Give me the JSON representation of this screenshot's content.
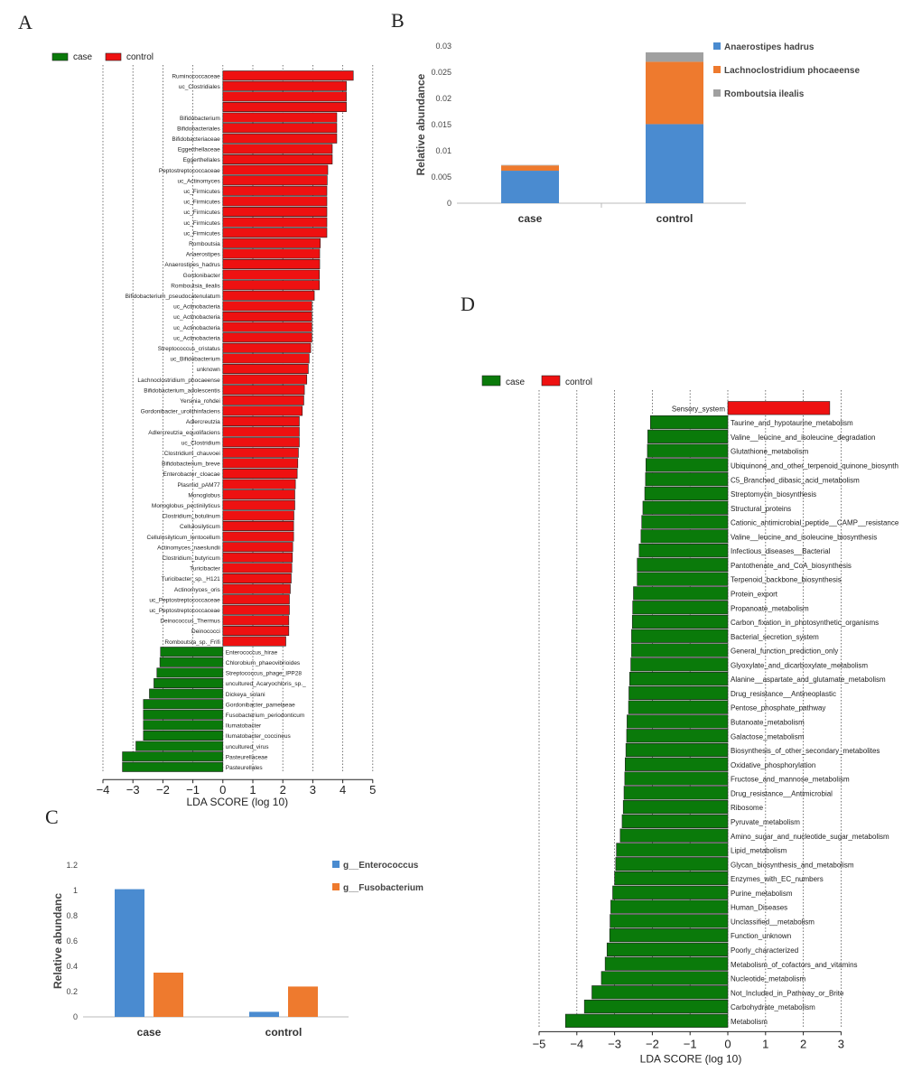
{
  "colors": {
    "case": "#0a7a0a",
    "control": "#ee1111",
    "blue": "#4a8bd0",
    "orange": "#ee7a2e",
    "gray": "#a0a0a0",
    "grid": "#555555"
  },
  "panels": {
    "a": "A",
    "b": "B",
    "c": "C",
    "d": "D"
  },
  "chart_data": [
    {
      "panel": "A",
      "type": "bar",
      "orientation": "horizontal",
      "legend": [
        "case",
        "control"
      ],
      "xlabel": "LDA SCORE (log 10)",
      "xlim": [
        -4,
        5
      ],
      "xticks": [
        "−4",
        "−3",
        "−2",
        "−1",
        "0",
        "1",
        "2",
        "3",
        "4",
        "5"
      ],
      "bars": [
        {
          "label": "Ruminococcaceae",
          "value": 4.35,
          "group": "control"
        },
        {
          "label": "uc_Clostridiales",
          "value": 4.12,
          "group": "control"
        },
        {
          "label": "",
          "value": 4.12,
          "group": "control"
        },
        {
          "label": "",
          "value": 4.12,
          "group": "control"
        },
        {
          "label": "Bifidobacterium",
          "value": 3.8,
          "group": "control"
        },
        {
          "label": "Bifidobacteriales",
          "value": 3.8,
          "group": "control"
        },
        {
          "label": "Bifidobacteriaceae",
          "value": 3.8,
          "group": "control"
        },
        {
          "label": "Eggerthellaceae",
          "value": 3.65,
          "group": "control"
        },
        {
          "label": "Eggerthellales",
          "value": 3.65,
          "group": "control"
        },
        {
          "label": "Peptostreptococcaceae",
          "value": 3.5,
          "group": "control"
        },
        {
          "label": "uc_Actinomyces",
          "value": 3.48,
          "group": "control"
        },
        {
          "label": "uc_Firmicutes",
          "value": 3.47,
          "group": "control"
        },
        {
          "label": "uc_Firmicutes",
          "value": 3.47,
          "group": "control"
        },
        {
          "label": "uc_Firmicutes",
          "value": 3.47,
          "group": "control"
        },
        {
          "label": "uc_Firmicutes",
          "value": 3.47,
          "group": "control"
        },
        {
          "label": "uc_Firmicutes",
          "value": 3.47,
          "group": "control"
        },
        {
          "label": "Romboutsia",
          "value": 3.25,
          "group": "control"
        },
        {
          "label": "Anaerostipes",
          "value": 3.23,
          "group": "control"
        },
        {
          "label": "Anaerostipes_hadrus",
          "value": 3.23,
          "group": "control"
        },
        {
          "label": "Gordonibacter",
          "value": 3.22,
          "group": "control"
        },
        {
          "label": "Romboutsia_ilealis",
          "value": 3.22,
          "group": "control"
        },
        {
          "label": "Bifidobacterium_pseudocatenulatum",
          "value": 3.05,
          "group": "control"
        },
        {
          "label": "uc_Actinobacteria",
          "value": 2.97,
          "group": "control"
        },
        {
          "label": "uc_Actinobacteria",
          "value": 2.97,
          "group": "control"
        },
        {
          "label": "uc_Actinobacteria",
          "value": 2.97,
          "group": "control"
        },
        {
          "label": "uc_Actinobacteria",
          "value": 2.97,
          "group": "control"
        },
        {
          "label": "Streptococcus_cristatus",
          "value": 2.93,
          "group": "control"
        },
        {
          "label": "uc_Bifidobacterium",
          "value": 2.88,
          "group": "control"
        },
        {
          "label": "unknown",
          "value": 2.85,
          "group": "control"
        },
        {
          "label": "Lachnoclostridium_phocaeense",
          "value": 2.8,
          "group": "control"
        },
        {
          "label": "Bifidobacterium_adolescentis",
          "value": 2.72,
          "group": "control"
        },
        {
          "label": "Yersinia_rohdei",
          "value": 2.7,
          "group": "control"
        },
        {
          "label": "Gordonibacter_urolithinfaciens",
          "value": 2.65,
          "group": "control"
        },
        {
          "label": "Adlercreutzia",
          "value": 2.55,
          "group": "control"
        },
        {
          "label": "Adlercreutzia_equolifaciens",
          "value": 2.55,
          "group": "control"
        },
        {
          "label": "uc_Clostridium",
          "value": 2.55,
          "group": "control"
        },
        {
          "label": "Clostridium_chauvoei",
          "value": 2.52,
          "group": "control"
        },
        {
          "label": "Bifidobacterium_breve",
          "value": 2.5,
          "group": "control"
        },
        {
          "label": "Enterobacter_cloacae",
          "value": 2.48,
          "group": "control"
        },
        {
          "label": "Plasmid_pAM77",
          "value": 2.42,
          "group": "control"
        },
        {
          "label": "Monoglobus",
          "value": 2.4,
          "group": "control"
        },
        {
          "label": "Monoglobus_pectinilyticus",
          "value": 2.4,
          "group": "control"
        },
        {
          "label": "Clostridium_botulinum",
          "value": 2.37,
          "group": "control"
        },
        {
          "label": "Cellulosilyticum",
          "value": 2.36,
          "group": "control"
        },
        {
          "label": "Cellulosilyticum_lentocellum",
          "value": 2.36,
          "group": "control"
        },
        {
          "label": "Actinomyces_naeslundii",
          "value": 2.33,
          "group": "control"
        },
        {
          "label": "Clostridium_butyricum",
          "value": 2.32,
          "group": "control"
        },
        {
          "label": "Turicibacter",
          "value": 2.3,
          "group": "control"
        },
        {
          "label": "Turicibacter_sp._H121",
          "value": 2.28,
          "group": "control"
        },
        {
          "label": "Actinomyces_oris",
          "value": 2.25,
          "group": "control"
        },
        {
          "label": "uc_Peptostreptococcaceae",
          "value": 2.22,
          "group": "control"
        },
        {
          "label": "uc_Peptostreptococcaceae",
          "value": 2.22,
          "group": "control"
        },
        {
          "label": "Deinococcus_Thermus",
          "value": 2.2,
          "group": "control"
        },
        {
          "label": "Deinococci",
          "value": 2.2,
          "group": "control"
        },
        {
          "label": "Romboutsia_sp._Frifi",
          "value": 2.1,
          "group": "control"
        },
        {
          "label": "Enterococcus_hirae",
          "value": -2.08,
          "group": "case"
        },
        {
          "label": "Chlorobium_phaeovibrioides",
          "value": -2.1,
          "group": "case"
        },
        {
          "label": "Streptococcus_phage_IPP28",
          "value": -2.2,
          "group": "case"
        },
        {
          "label": "uncultured_Acaryochloris_sp._",
          "value": -2.3,
          "group": "case"
        },
        {
          "label": "Dickeya_solani",
          "value": -2.45,
          "group": "case"
        },
        {
          "label": "Gordonibacter_pamelaeae",
          "value": -2.65,
          "group": "case"
        },
        {
          "label": "Fusobacterium_periodonticum",
          "value": -2.65,
          "group": "case"
        },
        {
          "label": "Ilumatobacter",
          "value": -2.65,
          "group": "case"
        },
        {
          "label": "Ilumatobacter_coccineus",
          "value": -2.65,
          "group": "case"
        },
        {
          "label": "uncultured_virus",
          "value": -2.9,
          "group": "case"
        },
        {
          "label": "Pasteurellaceae",
          "value": -3.35,
          "group": "case"
        },
        {
          "label": "Pasteurellales",
          "value": -3.35,
          "group": "case"
        }
      ]
    },
    {
      "panel": "B",
      "type": "bar",
      "stacked": true,
      "categories": [
        "case",
        "control"
      ],
      "ylabel": "Relative abundance",
      "ylim": [
        0,
        0.03
      ],
      "yticks": [
        "0",
        "0.005",
        "0.01",
        "0.015",
        "0.02",
        "0.025",
        "0.03"
      ],
      "series": [
        {
          "name": "Anaerostipes hadrus",
          "values": [
            0.0062,
            0.0151
          ]
        },
        {
          "name": "Lachnoclostridium phocaeense",
          "values": [
            0.001,
            0.0119
          ]
        },
        {
          "name": "Romboutsia ilealis",
          "values": [
            0.0001,
            0.0018
          ]
        }
      ]
    },
    {
      "panel": "C",
      "type": "bar",
      "stacked": false,
      "categories": [
        "case",
        "control"
      ],
      "ylabel": "Relative abundanc",
      "ylim": [
        0,
        1.2
      ],
      "yticks": [
        "0",
        "0.2",
        "0.4",
        "0.6",
        "0.8",
        "1",
        "1.2"
      ],
      "series": [
        {
          "name": "g__Enterococcus",
          "values": [
            1.01,
            0.04
          ]
        },
        {
          "name": "g__Fusobacterium",
          "values": [
            0.35,
            0.24
          ]
        }
      ]
    },
    {
      "panel": "D",
      "type": "bar",
      "orientation": "horizontal",
      "legend": [
        "case",
        "control"
      ],
      "xlabel": "LDA SCORE (log 10)",
      "xlim": [
        -5,
        3
      ],
      "xticks": [
        "−5",
        "−4",
        "−3",
        "−2",
        "−1",
        "0",
        "1",
        "2",
        "3"
      ],
      "bars": [
        {
          "label": "Sensory_system",
          "value": 2.7,
          "group": "control"
        },
        {
          "label": "Taurine_and_hypotaurine_metabolism",
          "value": -2.05,
          "group": "case"
        },
        {
          "label": "Valine__leucine_and_isoleucine_degradation",
          "value": -2.12,
          "group": "case"
        },
        {
          "label": "Glutathione_metabolism",
          "value": -2.13,
          "group": "case"
        },
        {
          "label": "Ubiquinone_and_other_terpenoid_quinone_biosynth",
          "value": -2.17,
          "group": "case"
        },
        {
          "label": "C5_Branched_dibasic_acid_metabolism",
          "value": -2.18,
          "group": "case"
        },
        {
          "label": "Streptomycin_biosynthesis",
          "value": -2.2,
          "group": "case"
        },
        {
          "label": "Structural_proteins",
          "value": -2.25,
          "group": "case"
        },
        {
          "label": "Cationic_antimicrobial_peptide__CAMP__resistance",
          "value": -2.28,
          "group": "case"
        },
        {
          "label": "Valine__leucine_and_isoleucine_biosynthesis",
          "value": -2.3,
          "group": "case"
        },
        {
          "label": "Infectious_diseases__Bacterial",
          "value": -2.35,
          "group": "case"
        },
        {
          "label": "Pantothenate_and_CoA_biosynthesis",
          "value": -2.4,
          "group": "case"
        },
        {
          "label": "Terpenoid_backbone_biosynthesis",
          "value": -2.4,
          "group": "case"
        },
        {
          "label": "Protein_export",
          "value": -2.5,
          "group": "case"
        },
        {
          "label": "Propanoate_metabolism",
          "value": -2.52,
          "group": "case"
        },
        {
          "label": "Carbon_fixation_in_photosynthetic_organisms",
          "value": -2.53,
          "group": "case"
        },
        {
          "label": "Bacterial_secretion_system",
          "value": -2.55,
          "group": "case"
        },
        {
          "label": "General_function_prediction_only",
          "value": -2.55,
          "group": "case"
        },
        {
          "label": "Glyoxylate_and_dicarboxylate_metabolism",
          "value": -2.57,
          "group": "case"
        },
        {
          "label": "Alanine__aspartate_and_glutamate_metabolism",
          "value": -2.6,
          "group": "case"
        },
        {
          "label": "Drug_resistance__Antineoplastic",
          "value": -2.62,
          "group": "case"
        },
        {
          "label": "Pentose_phosphate_pathway",
          "value": -2.63,
          "group": "case"
        },
        {
          "label": "Butanoate_metabolism",
          "value": -2.67,
          "group": "case"
        },
        {
          "label": "Galactose_metabolism",
          "value": -2.68,
          "group": "case"
        },
        {
          "label": "Biosynthesis_of_other_secondary_metabolites",
          "value": -2.7,
          "group": "case"
        },
        {
          "label": "Oxidative_phosphorylation",
          "value": -2.72,
          "group": "case"
        },
        {
          "label": "Fructose_and_mannose_metabolism",
          "value": -2.73,
          "group": "case"
        },
        {
          "label": "Drug_resistance__Antimicrobial",
          "value": -2.75,
          "group": "case"
        },
        {
          "label": "Ribosome",
          "value": -2.77,
          "group": "case"
        },
        {
          "label": "Pyruvate_metabolism",
          "value": -2.8,
          "group": "case"
        },
        {
          "label": "Amino_sugar_and_nucleotide_sugar_metabolism",
          "value": -2.85,
          "group": "case"
        },
        {
          "label": "Lipid_metabolism",
          "value": -2.95,
          "group": "case"
        },
        {
          "label": "Glycan_biosynthesis_and_metabolism",
          "value": -2.97,
          "group": "case"
        },
        {
          "label": "Enzymes_with_EC_numbers",
          "value": -3.0,
          "group": "case"
        },
        {
          "label": "Purine_metabolism",
          "value": -3.05,
          "group": "case"
        },
        {
          "label": "Human_Diseases",
          "value": -3.1,
          "group": "case"
        },
        {
          "label": "Unclassified__metabolism",
          "value": -3.12,
          "group": "case"
        },
        {
          "label": "Function_unknown",
          "value": -3.13,
          "group": "case"
        },
        {
          "label": "Poorly_characterized",
          "value": -3.2,
          "group": "case"
        },
        {
          "label": "Metabolism_of_cofactors_and_vitamins",
          "value": -3.25,
          "group": "case"
        },
        {
          "label": "Nucleotide_metabolism",
          "value": -3.35,
          "group": "case"
        },
        {
          "label": "Not_Included_in_Pathway_or_Brite",
          "value": -3.6,
          "group": "case"
        },
        {
          "label": "Carbohydrate_metabolism",
          "value": -3.8,
          "group": "case"
        },
        {
          "label": "Metabolism",
          "value": -4.3,
          "group": "case"
        }
      ]
    }
  ]
}
